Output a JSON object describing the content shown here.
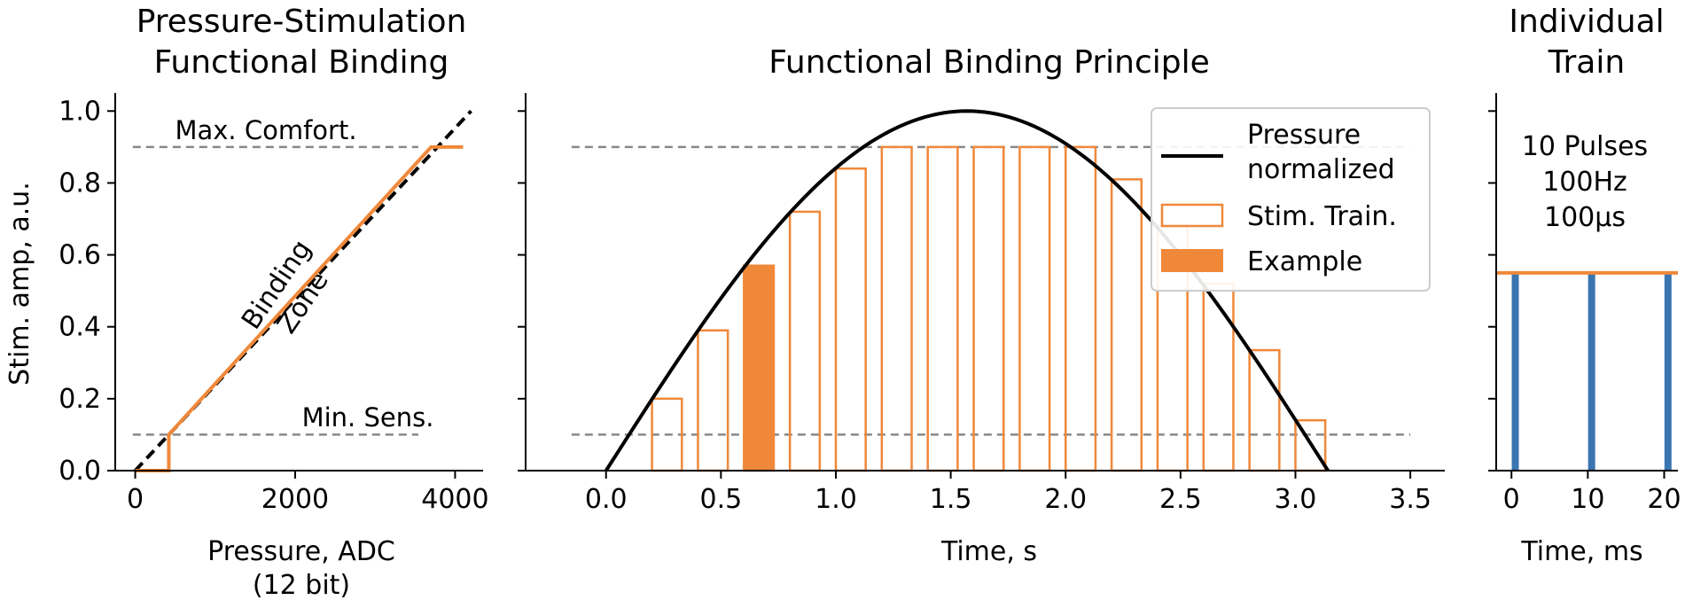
{
  "colors": {
    "orange": "#f0883a",
    "blue": "#3a75b0",
    "black": "#000000",
    "dashed": "#888888"
  },
  "chart_data": [
    {
      "type": "line",
      "title_lines": [
        "Pressure-Stimulation",
        "Functional Binding"
      ],
      "xlabel_lines": [
        "Pressure, ADC",
        "(12 bit)"
      ],
      "ylabel": "Stim. amp, a.u.",
      "xlim": [
        -250,
        4350
      ],
      "ylim": [
        0,
        1.05
      ],
      "xticks": [
        0,
        2000,
        4000
      ],
      "yticks": [
        0.0,
        0.2,
        0.4,
        0.6,
        0.8,
        1.0
      ],
      "ytick_labels": [
        "0.0",
        "0.2",
        "0.4",
        "0.6",
        "0.8",
        "1.0"
      ],
      "hlines": [
        {
          "y": 0.9,
          "label": "Max. Comfort."
        },
        {
          "y": 0.1,
          "label": "Min. Sens."
        }
      ],
      "annotation_lines": [
        "Binding",
        "Zone"
      ],
      "dashed_line": {
        "x": [
          0,
          4200
        ],
        "y": [
          0,
          1.0
        ]
      },
      "binding_curve": {
        "x": [
          0,
          420,
          420,
          3700,
          4100
        ],
        "y": [
          0,
          0,
          0.1,
          0.9,
          0.9
        ]
      }
    },
    {
      "type": "bar",
      "title": "Functional Binding Principle",
      "xlabel": "Time, s",
      "xlim": [
        -0.35,
        3.65
      ],
      "ylim": [
        0,
        1.05
      ],
      "xticks": [
        0.0,
        0.5,
        1.0,
        1.5,
        2.0,
        2.5,
        3.0,
        3.5
      ],
      "xtick_labels": [
        "0.0",
        "0.5",
        "1.0",
        "1.5",
        "2.0",
        "2.5",
        "3.0",
        "3.5"
      ],
      "hlines": [
        {
          "y": 0.9
        },
        {
          "y": 0.1
        }
      ],
      "pressure_curve": {
        "x_start": 0,
        "x_end": 3.1416
      },
      "bar_width": 0.13,
      "bars_x": [
        0.2,
        0.4,
        0.6,
        0.8,
        1.0,
        1.2,
        1.4,
        1.6,
        1.8,
        2.0,
        2.2,
        2.4,
        2.6,
        2.8,
        3.0
      ],
      "bars_height": [
        0.2,
        0.39,
        0.57,
        0.72,
        0.84,
        0.9,
        0.9,
        0.9,
        0.9,
        0.9,
        0.81,
        0.68,
        0.52,
        0.335,
        0.14
      ],
      "example_index": 2,
      "legend": {
        "position": "upper-right",
        "entries": [
          {
            "label_lines": [
              "Pressure",
              "normalized"
            ],
            "kind": "line"
          },
          {
            "label_lines": [
              "Stim. Train."
            ],
            "kind": "hollow"
          },
          {
            "label_lines": [
              "Example"
            ],
            "kind": "filled"
          }
        ]
      }
    },
    {
      "type": "bar",
      "title_lines": [
        "Individual",
        "Train"
      ],
      "xlabel": "Time, ms",
      "xlim": [
        -2,
        21.8
      ],
      "ylim": [
        0,
        1.05
      ],
      "xticks": [
        0,
        10,
        20
      ],
      "annotation_lines": [
        "10 Pulses",
        "100Hz",
        "100µs"
      ],
      "train_level": 0.55,
      "pulses_x": [
        0.5,
        10.5,
        20.5
      ],
      "pulse_height": 0.55
    }
  ]
}
